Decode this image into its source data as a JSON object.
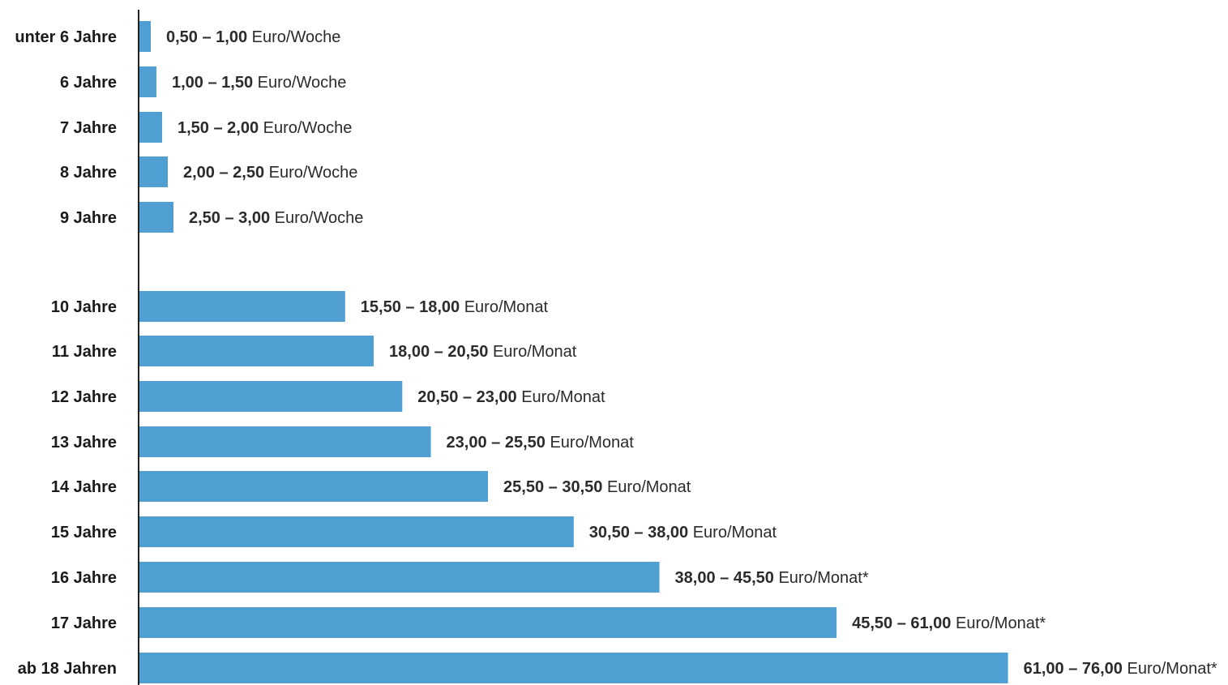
{
  "chart_data": {
    "type": "bar",
    "orientation": "horizontal",
    "bar_color": "#4f9fd3",
    "axis_color": "#222222",
    "categories": [
      "unter 6 Jahre",
      "6 Jahre",
      "7 Jahre",
      "8 Jahre",
      "9 Jahre",
      "10 Jahre",
      "11 Jahre",
      "12 Jahre",
      "13 Jahre",
      "14 Jahre",
      "15 Jahre",
      "16 Jahre",
      "17 Jahre",
      "ab 18 Jahren"
    ],
    "groups": [
      {
        "unit": "Euro/Woche",
        "indices": [
          0,
          1,
          2,
          3,
          4
        ]
      },
      {
        "unit": "Euro/Monat",
        "indices": [
          5,
          6,
          7,
          8,
          9,
          10,
          11,
          12,
          13
        ]
      }
    ],
    "values": [
      1.0,
      1.5,
      2.0,
      2.5,
      3.0,
      18.0,
      20.5,
      23.0,
      25.5,
      30.5,
      38.0,
      45.5,
      61.0,
      76.0
    ],
    "ranges": [
      {
        "range": "0,50 – 1,00",
        "unit": "Euro/Woche"
      },
      {
        "range": "1,00 – 1,50",
        "unit": "Euro/Woche"
      },
      {
        "range": "1,50 – 2,00",
        "unit": "Euro/Woche"
      },
      {
        "range": "2,00 – 2,50",
        "unit": "Euro/Woche"
      },
      {
        "range": "2,50 – 3,00",
        "unit": "Euro/Woche"
      },
      {
        "range": "15,50 – 18,00",
        "unit": "Euro/Monat"
      },
      {
        "range": "18,00 – 20,50",
        "unit": "Euro/Monat"
      },
      {
        "range": "20,50 – 23,00",
        "unit": "Euro/Monat"
      },
      {
        "range": "23,00 – 25,50",
        "unit": "Euro/Monat"
      },
      {
        "range": "25,50 – 30,50",
        "unit": "Euro/Monat"
      },
      {
        "range": "30,50 – 38,00",
        "unit": "Euro/Monat"
      },
      {
        "range": "38,00 – 45,50",
        "unit": "Euro/Monat*"
      },
      {
        "range": "45,50 – 61,00",
        "unit": "Euro/Monat*"
      },
      {
        "range": "61,00 – 76,00",
        "unit": "Euro/Monat*"
      }
    ],
    "title": "",
    "xlabel": "",
    "ylabel": "",
    "grid": false,
    "legend": "none"
  }
}
